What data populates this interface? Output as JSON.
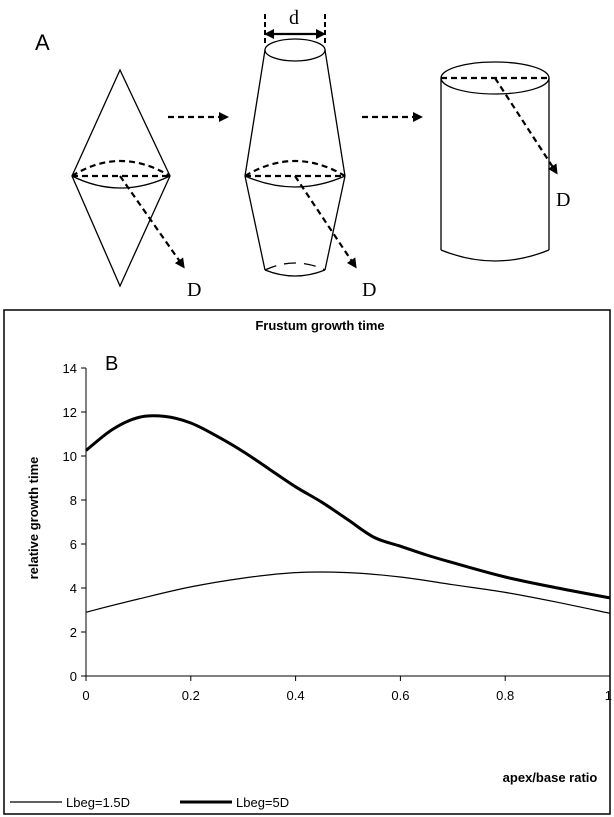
{
  "panel_a": {
    "letter": "A",
    "d_label": "d",
    "diagonal_label": "D"
  },
  "chart_data": {
    "type": "line",
    "panel_letter": "B",
    "title": "Frustum growth time",
    "xlabel": "apex/base ratio",
    "ylabel": "relative growth time",
    "xlim": [
      0,
      1
    ],
    "ylim": [
      0,
      14
    ],
    "xticks": [
      "0",
      "0.2",
      "0.4",
      "0.6",
      "0.8",
      "1"
    ],
    "yticks": [
      "0",
      "2",
      "4",
      "6",
      "8",
      "10",
      "12",
      "14"
    ],
    "grid": false,
    "legend_position": "bottom-left",
    "series": [
      {
        "name": "Lbeg=1.5D",
        "line_width": "thin",
        "color": "#000000",
        "x": [
          0,
          0.1,
          0.2,
          0.3,
          0.4,
          0.5,
          0.6,
          0.7,
          0.8,
          0.9,
          1.0
        ],
        "y": [
          2.9,
          3.5,
          4.05,
          4.45,
          4.7,
          4.7,
          4.5,
          4.15,
          3.8,
          3.35,
          2.85
        ]
      },
      {
        "name": "Lbeg=5D",
        "line_width": "thick",
        "color": "#000000",
        "x": [
          0,
          0.05,
          0.1,
          0.15,
          0.2,
          0.25,
          0.3,
          0.35,
          0.4,
          0.45,
          0.5,
          0.55,
          0.6,
          0.65,
          0.7,
          0.8,
          0.9,
          1.0
        ],
        "y": [
          10.25,
          11.2,
          11.75,
          11.8,
          11.5,
          10.9,
          10.2,
          9.4,
          8.6,
          7.9,
          7.1,
          6.3,
          5.9,
          5.5,
          5.15,
          4.5,
          4.0,
          3.55
        ]
      }
    ]
  }
}
